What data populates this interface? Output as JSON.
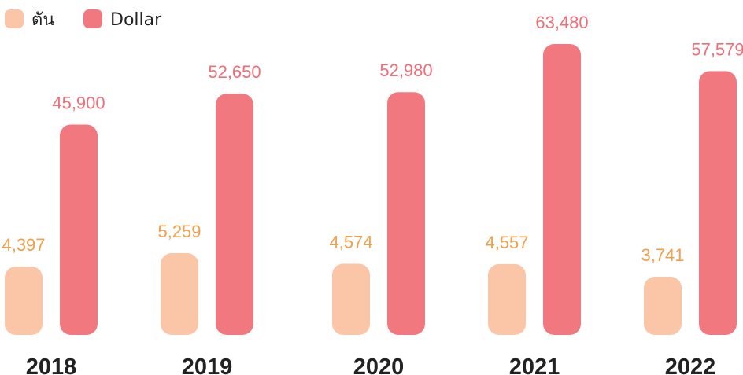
{
  "chart_data": {
    "type": "bar",
    "title": "",
    "xlabel": "",
    "ylabel": "",
    "categories": [
      "2018",
      "2019",
      "2020",
      "2021",
      "2022"
    ],
    "series": [
      {
        "name": "ตัน",
        "color": "#fbc5a8",
        "label_color": "#f0a04b",
        "values": [
          4397,
          5259,
          4574,
          4557,
          3741
        ],
        "labels": [
          "4,397",
          "5,259",
          "4,574",
          "4,557",
          "3,741"
        ]
      },
      {
        "name": "Dollar",
        "color": "#f27880",
        "label_color": "#ee6f78",
        "values": [
          45900,
          52650,
          52980,
          63480,
          57579
        ],
        "labels": [
          "45,900",
          "52,650",
          "52,980",
          "63,480",
          "57,579"
        ]
      }
    ],
    "grid": false,
    "legend": "top-left",
    "data_labels": true
  }
}
